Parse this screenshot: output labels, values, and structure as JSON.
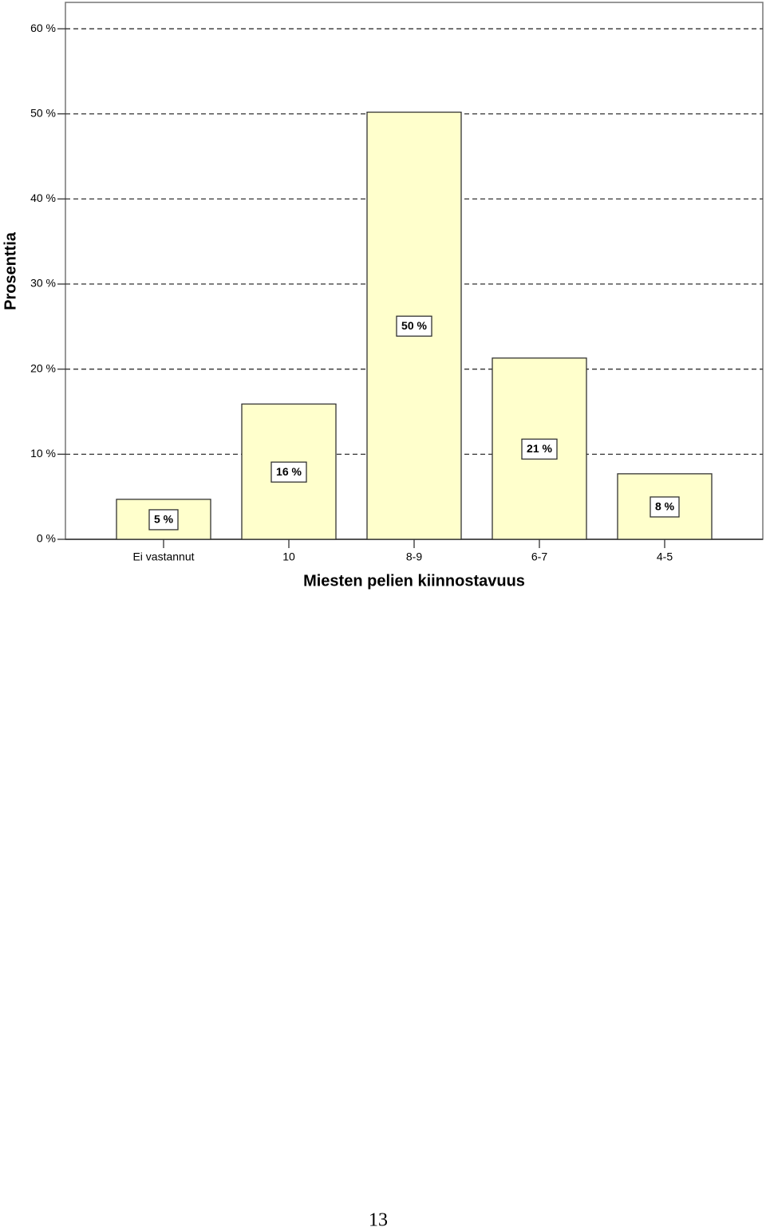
{
  "chart_data": {
    "type": "bar",
    "x_label": "Miesten pelien kiinnostavuus",
    "y_label": "Prosenttia",
    "categories": [
      "Ei vastannut",
      "10",
      "8-9",
      "6-7",
      "4-5"
    ],
    "values": [
      4.7,
      15.9,
      50.2,
      21.3,
      7.7
    ],
    "value_labels": [
      "5 %",
      "16 %",
      "50 %",
      "21 %",
      "8 %"
    ],
    "color": "#ffffcc",
    "ylim": [
      0,
      63.1
    ],
    "yticks": [
      {
        "value": 0,
        "label": "0 %"
      },
      {
        "value": 10,
        "label": "10 %"
      },
      {
        "value": 20,
        "label": "20 %"
      },
      {
        "value": 30,
        "label": "30 %"
      },
      {
        "value": 40,
        "label": "40 %"
      },
      {
        "value": 50,
        "label": "50 %"
      },
      {
        "value": 60,
        "label": "60 %"
      }
    ],
    "grid": true
  },
  "page_number": "13"
}
